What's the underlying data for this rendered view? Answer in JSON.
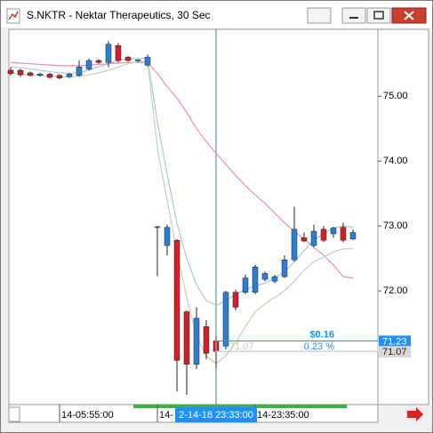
{
  "chart_data": {
    "type": "candlestick",
    "title": "S.NKTR - Nektar Therapeutics, 30 Sec",
    "up_color": "#2a7fd4",
    "down_color": "#d0202a",
    "ylim": [
      70.25,
      76.03
    ],
    "yticks": [
      {
        "value": 72,
        "label": "72.00"
      },
      {
        "value": 73,
        "label": "73.00"
      },
      {
        "value": 74,
        "label": "74.00"
      },
      {
        "value": 75,
        "label": "75.00"
      }
    ],
    "xticks": [
      {
        "value": 5,
        "label": "14-05:55:00"
      },
      {
        "value": 15,
        "label": "14-"
      },
      {
        "value": 25,
        "label": "14-23:35:00"
      }
    ],
    "open": [
      75.4,
      75.4,
      75.36,
      75.32,
      75.34,
      75.32,
      75.3,
      75.32,
      75.42,
      75.55,
      75.52,
      75.78,
      75.6,
      75.55,
      75.48,
      72.98,
      72.7,
      72.78,
      71.68,
      70.87,
      71.45,
      71.23,
      71.15,
      71.98,
      71.98,
      71.98,
      72.18,
      72.15,
      72.22,
      72.48,
      72.82,
      72.7,
      72.95,
      72.88,
      72.98,
      72.8
    ],
    "high": [
      75.45,
      75.42,
      75.38,
      75.36,
      75.36,
      75.34,
      75.36,
      75.55,
      75.58,
      75.57,
      75.85,
      75.82,
      75.62,
      75.57,
      75.64,
      73.0,
      73.02,
      72.8,
      71.7,
      71.75,
      71.55,
      71.3,
      72.0,
      72.02,
      72.25,
      72.4,
      72.3,
      72.25,
      72.55,
      73.3,
      72.9,
      73.02,
      73.0,
      72.99,
      73.05,
      72.95
    ],
    "low": [
      75.32,
      75.3,
      75.3,
      75.3,
      75.27,
      75.26,
      75.28,
      75.3,
      75.4,
      75.5,
      75.45,
      75.52,
      75.53,
      75.53,
      75.46,
      72.23,
      72.55,
      70.45,
      70.4,
      70.8,
      70.95,
      70.8,
      71.1,
      71.7,
      71.95,
      71.95,
      72.15,
      72.12,
      72.2,
      72.45,
      72.75,
      72.68,
      72.75,
      72.82,
      72.75,
      72.78
    ],
    "close": [
      75.35,
      75.33,
      75.32,
      75.34,
      75.29,
      75.28,
      75.34,
      75.45,
      75.55,
      75.52,
      75.8,
      75.55,
      75.55,
      75.56,
      75.6,
      72.99,
      72.98,
      70.93,
      70.87,
      71.58,
      71.04,
      71.07,
      71.98,
      71.75,
      72.2,
      72.37,
      72.27,
      72.22,
      72.48,
      72.95,
      72.77,
      72.92,
      72.78,
      72.97,
      72.78,
      72.9
    ],
    "lines": [
      {
        "color": "#f08cb4",
        "values": [
          75.52,
          75.51,
          75.5,
          75.49,
          75.48,
          75.47,
          75.47,
          75.47,
          75.48,
          75.49,
          75.5,
          75.51,
          75.52,
          75.52,
          75.52,
          75.35,
          75.15,
          74.97,
          74.75,
          74.5,
          74.3,
          74.12,
          73.95,
          73.78,
          73.62,
          73.48,
          73.35,
          73.2,
          73.05,
          72.92,
          72.8,
          72.67,
          72.55,
          72.4,
          72.22,
          72.2
        ]
      },
      {
        "color": "#a8c8e8",
        "values": [
          75.45,
          75.44,
          75.42,
          75.4,
          75.38,
          75.36,
          75.35,
          75.36,
          75.4,
          75.45,
          75.5,
          75.55,
          75.58,
          75.58,
          75.58,
          74.6,
          73.8,
          73.05,
          72.5,
          72.1,
          71.85,
          71.78,
          71.85,
          71.95,
          72.02,
          72.08,
          72.12,
          72.2,
          72.3,
          72.45,
          72.62,
          72.78,
          72.88,
          72.97,
          73.0,
          72.98
        ]
      },
      {
        "color": "#b8d8b0",
        "values": [
          75.35,
          75.34,
          75.33,
          75.32,
          75.31,
          75.3,
          75.3,
          75.31,
          75.33,
          75.36,
          75.4,
          75.45,
          75.5,
          75.53,
          75.55,
          74.2,
          73.4,
          72.6,
          71.9,
          71.3,
          71.0,
          70.88,
          71.0,
          71.2,
          71.45,
          71.68,
          71.8,
          71.9,
          72.0,
          72.15,
          72.32,
          72.45,
          72.52,
          72.6,
          72.65,
          72.65
        ]
      }
    ],
    "crosshair": {
      "index": 21,
      "label": "2-14-18 23:33:00"
    },
    "price_labels": [
      {
        "value": 71.23,
        "label": "71.23",
        "color": "#1e90ff"
      },
      {
        "value": 71.07,
        "label": "71.07",
        "color": "#d8d8d8"
      }
    ],
    "measure": {
      "change": "$0.16",
      "percent": "0.23 %",
      "reference": "71.07"
    }
  }
}
